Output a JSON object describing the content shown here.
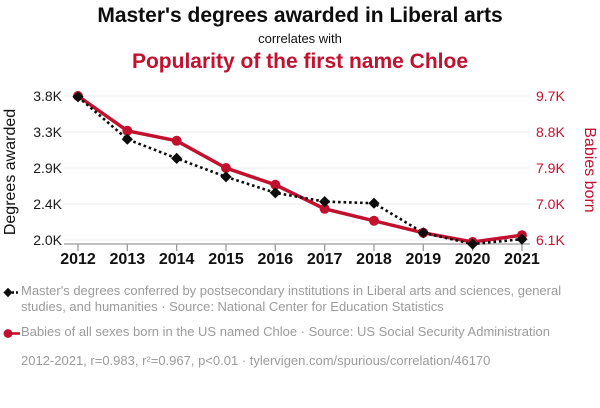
{
  "header": {
    "title": "Master's degrees awarded in Liberal arts",
    "subtitle": "correlates with",
    "title2": "Popularity of the first name Chloe"
  },
  "colors": {
    "series_degrees": "#0d0d0d",
    "series_babies": "#c2112f",
    "legend_text": "#9b9b9b",
    "gridline": "#eaeaea",
    "axis_line": "#9a9a9a"
  },
  "chart_data": {
    "type": "line",
    "x": [
      2012,
      2013,
      2014,
      2015,
      2016,
      2017,
      2018,
      2019,
      2020,
      2021
    ],
    "series": [
      {
        "name": "Master's degrees awarded in Liberal arts",
        "axis": "left",
        "color": "#0d0d0d",
        "marker": "diamond",
        "line_style": "dotted",
        "values": [
          3790,
          3260,
          3020,
          2790,
          2590,
          2480,
          2460,
          2090,
          1950,
          2010
        ]
      },
      {
        "name": "Babies born in the US named Chloe",
        "axis": "right",
        "color": "#c2112f",
        "marker": "circle",
        "line_style": "solid",
        "values": [
          9700,
          8830,
          8580,
          7900,
          7480,
          6880,
          6580,
          6280,
          6050,
          6220
        ]
      }
    ],
    "left_axis": {
      "label": "Degrees awarded",
      "range": [
        2000,
        3800
      ],
      "ticks": [
        {
          "value": 3800,
          "label": "3.8K"
        },
        {
          "value": 3350,
          "label": "3.3K"
        },
        {
          "value": 2900,
          "label": "2.9K"
        },
        {
          "value": 2450,
          "label": "2.4K"
        },
        {
          "value": 2000,
          "label": "2.0K"
        }
      ]
    },
    "right_axis": {
      "label": "Babies born",
      "range": [
        6100,
        9700
      ],
      "ticks": [
        {
          "value": 9700,
          "label": "9.7K"
        },
        {
          "value": 8800,
          "label": "8.8K"
        },
        {
          "value": 7900,
          "label": "7.9K"
        },
        {
          "value": 7000,
          "label": "7.0K"
        },
        {
          "value": 6100,
          "label": "6.1K"
        }
      ]
    },
    "grid": true,
    "legend_position": "bottom"
  },
  "legend": {
    "items": [
      {
        "label": "Master's degrees conferred by postsecondary institutions in Liberal arts and sciences, general studies, and humanities · Source: National Center for Education Statistics"
      },
      {
        "label": "Babies of all sexes born in the US named Chloe · Source: US Social Security Administration"
      }
    ],
    "stats": "2012-2021, r=0.983, r²=0.967, p<0.01 · tylervigen.com/spurious/correlation/46170"
  }
}
